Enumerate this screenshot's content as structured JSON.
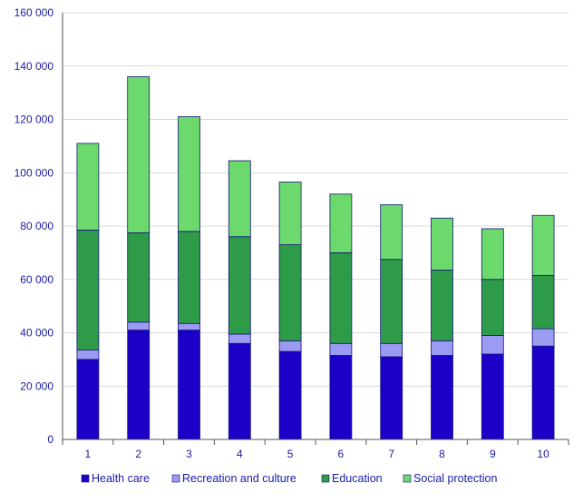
{
  "chart_data": {
    "type": "bar",
    "stacked": true,
    "categories": [
      "1",
      "2",
      "3",
      "4",
      "5",
      "6",
      "7",
      "8",
      "9",
      "10"
    ],
    "series": [
      {
        "name": "Health care",
        "color": "#1c00c8",
        "values": [
          30000,
          41000,
          41000,
          36000,
          33000,
          31500,
          31000,
          31500,
          32000,
          35000
        ]
      },
      {
        "name": "Recreation and culture",
        "color": "#9b9bf2",
        "values": [
          3500,
          3000,
          2500,
          3500,
          4000,
          4500,
          5000,
          5500,
          7000,
          6500
        ]
      },
      {
        "name": "Education",
        "color": "#2e9b48",
        "values": [
          45000,
          33500,
          34500,
          36500,
          36000,
          34000,
          31500,
          26500,
          21000,
          20000
        ]
      },
      {
        "name": "Social protection",
        "color": "#6bd96b",
        "values": [
          32500,
          58500,
          43000,
          28500,
          23500,
          22000,
          20500,
          19500,
          19000,
          22500
        ]
      }
    ],
    "ylim": [
      0,
      160000
    ],
    "yticks": [
      "0",
      "20 000",
      "40 000",
      "60 000",
      "80 000",
      "100 000",
      "120 000",
      "140 000",
      "160 000"
    ],
    "ytick_values": [
      0,
      20000,
      40000,
      60000,
      80000,
      100000,
      120000,
      140000,
      160000
    ],
    "grid": true,
    "legend_position": "bottom",
    "title": "",
    "xlabel": "",
    "ylabel": ""
  }
}
